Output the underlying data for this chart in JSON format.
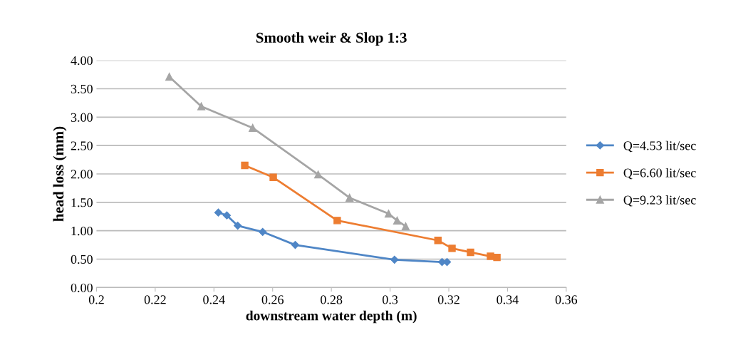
{
  "chart_data": {
    "type": "line",
    "title": "Smooth weir & Slop 1:3",
    "xlabel": "downstream water depth (m)",
    "ylabel": "head loss (mm)",
    "xlim": [
      0.2,
      0.36
    ],
    "xticks": [
      0.2,
      0.22,
      0.24,
      0.26,
      0.28,
      0.3,
      0.32,
      0.34,
      0.36
    ],
    "ylim": [
      0,
      4
    ],
    "yticks": [
      {
        "value": 0,
        "label": "0.00"
      },
      {
        "value": 0.5,
        "label": "0.50"
      },
      {
        "value": 1,
        "label": "1.00"
      },
      {
        "value": 1.5,
        "label": "1.50"
      },
      {
        "value": 2,
        "label": "2.00"
      },
      {
        "value": 2.5,
        "label": "2.50"
      },
      {
        "value": 3,
        "label": "3.00"
      },
      {
        "value": 3.5,
        "label": "3.50"
      },
      {
        "value": 4,
        "label": "4.00"
      }
    ],
    "grid": "y",
    "legend": "right",
    "line_style": "solid",
    "series": [
      {
        "name": "Q=4.53 lit/sec",
        "color": "#4f86c6",
        "marker": "diamond",
        "x": [
          0.2415,
          0.2444,
          0.2481,
          0.2566,
          0.2677,
          0.3015,
          0.3177,
          0.3194
        ],
        "values": [
          1.32,
          1.27,
          1.09,
          0.98,
          0.75,
          0.49,
          0.45,
          0.45
        ]
      },
      {
        "name": "Q=6.60 lit/sec",
        "color": "#ed7d31",
        "marker": "square",
        "x": [
          0.2505,
          0.2602,
          0.282,
          0.3163,
          0.3211,
          0.3274,
          0.3342,
          0.3364
        ],
        "values": [
          2.15,
          1.94,
          1.18,
          0.83,
          0.69,
          0.62,
          0.55,
          0.53
        ]
      },
      {
        "name": "Q=9.23 lit/sec",
        "color": "#a5a5a5",
        "marker": "triangle",
        "x": [
          0.2248,
          0.2357,
          0.2532,
          0.2755,
          0.2862,
          0.2995,
          0.3024,
          0.3053
        ],
        "values": [
          3.71,
          3.19,
          2.81,
          1.99,
          1.58,
          1.3,
          1.18,
          1.08
        ]
      }
    ]
  }
}
